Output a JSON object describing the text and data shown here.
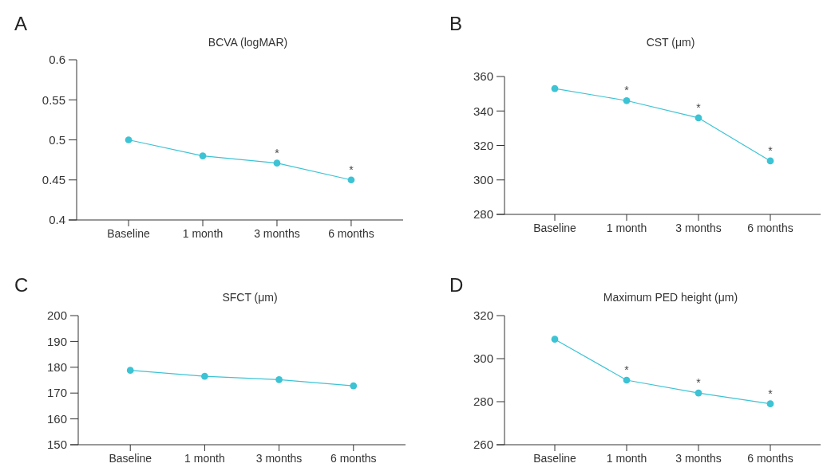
{
  "chart_data": [
    {
      "type": "line",
      "title": "BCVA (logMAR)",
      "categories": [
        "Baseline",
        "1 month",
        "3 months",
        "6 months"
      ],
      "series": [
        {
          "color": "#3cc3d4",
          "values": [
            0.5,
            0.48,
            0.471,
            0.45
          ]
        }
      ],
      "ylim": [
        0.4,
        0.6
      ],
      "yticks": [
        0.4,
        0.45,
        0.5,
        0.55,
        0.6
      ],
      "marker": "circle",
      "grid": false,
      "annotations": [
        "A",
        {
          "text": "*",
          "x": "3 months",
          "y": 0.471
        },
        {
          "text": "*",
          "x": "6 months",
          "y": 0.45
        }
      ]
    },
    {
      "type": "line",
      "title": "CST (μm)",
      "categories": [
        "Baseline",
        "1 month",
        "3 months",
        "6 months"
      ],
      "series": [
        {
          "color": "#3cc3d4",
          "values": [
            353,
            346,
            336,
            311
          ]
        }
      ],
      "ylim": [
        280,
        360
      ],
      "yticks": [
        280,
        300,
        320,
        340,
        360
      ],
      "marker": "circle",
      "grid": false,
      "annotations": [
        "B",
        {
          "text": "*",
          "x": "1 month",
          "y": 346
        },
        {
          "text": "*",
          "x": "3 months",
          "y": 336
        },
        {
          "text": "*",
          "x": "6 months",
          "y": 311
        }
      ]
    },
    {
      "type": "line",
      "title": "SFCT (μm)",
      "categories": [
        "Baseline",
        "1 month",
        "3 months",
        "6 months"
      ],
      "series": [
        {
          "color": "#3cc3d4",
          "values": [
            178.8,
            176.5,
            175.2,
            172.8
          ]
        }
      ],
      "ylim": [
        150,
        200
      ],
      "yticks": [
        150,
        160,
        170,
        180,
        190,
        200
      ],
      "marker": "circle",
      "grid": false,
      "annotations": [
        "C"
      ]
    },
    {
      "type": "line",
      "title": "Maximum PED height  (μm)",
      "categories": [
        "Baseline",
        "1 month",
        "3 months",
        "6 months"
      ],
      "series": [
        {
          "color": "#3cc3d4",
          "values": [
            309,
            290,
            284,
            279
          ]
        }
      ],
      "ylim": [
        260,
        320
      ],
      "yticks": [
        260,
        280,
        300,
        320
      ],
      "marker": "circle",
      "grid": false,
      "annotations": [
        "D",
        {
          "text": "*",
          "x": "1 month",
          "y": 290
        },
        {
          "text": "*",
          "x": "3 months",
          "y": 284
        },
        {
          "text": "*",
          "x": "6 months",
          "y": 279
        }
      ]
    }
  ]
}
